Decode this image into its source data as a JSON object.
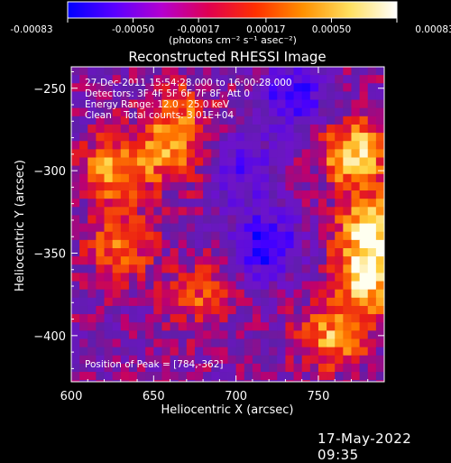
{
  "colorbar": {
    "ticks": [
      -0.00083,
      -0.0005,
      -0.00017,
      0.00017,
      0.0005,
      0.00083
    ],
    "tick_labels": [
      "-0.00083",
      "-0.00050",
      "-0.00017",
      "0.00017",
      "0.00050",
      "0.00083"
    ],
    "units_label": "(photons cm⁻² s⁻¹ asec⁻²)",
    "colors": [
      "#0000ff",
      "#5a00ff",
      "#b400d0",
      "#e00050",
      "#ff3000",
      "#ff9000",
      "#ffe060",
      "#ffffff"
    ]
  },
  "chart_data": {
    "type": "heatmap",
    "title": "Reconstructed RHESSI Image",
    "xlabel": "Heliocentric X (arcsec)",
    "ylabel": "Heliocentric Y (arcsec)",
    "xlim": [
      600,
      790
    ],
    "ylim": [
      -428,
      -237
    ],
    "x_ticks": [
      600,
      650,
      700,
      750
    ],
    "y_ticks": [
      -250,
      -300,
      -350,
      -400
    ],
    "x_tick_labels": [
      "600",
      "650",
      "700",
      "750"
    ],
    "y_tick_labels": [
      "−250",
      "−300",
      "−350",
      "−400"
    ],
    "color_range": [
      -0.00083,
      0.00083
    ],
    "annotations": [
      "27-Dec-2011 15:54:28.000 to 16:00:28.000",
      "Detectors: 3F 4F 5F 6F 7F 8F, Att 0",
      "Energy Range: 12.0 - 25.0 keV",
      "Clean    Total counts: 3.01E+04"
    ],
    "peak_label": "Position of Peak = [784,-362]",
    "peak": [
      784,
      -362
    ],
    "bright_regions": [
      {
        "x": 772,
        "y": -290,
        "value": 0.0008
      },
      {
        "x": 782,
        "y": -335,
        "value": 0.0008
      },
      {
        "x": 780,
        "y": -365,
        "value": 0.00083
      },
      {
        "x": 760,
        "y": -400,
        "value": 0.0006
      },
      {
        "x": 625,
        "y": -300,
        "value": 0.0006
      },
      {
        "x": 660,
        "y": -290,
        "value": 0.0005
      },
      {
        "x": 665,
        "y": -265,
        "value": 0.0004
      },
      {
        "x": 630,
        "y": -345,
        "value": 0.0005
      },
      {
        "x": 680,
        "y": -375,
        "value": 0.0004
      }
    ],
    "dim_regions": [
      {
        "x": 735,
        "y": -255,
        "value": -0.0006
      },
      {
        "x": 718,
        "y": -345,
        "value": -0.0007
      },
      {
        "x": 705,
        "y": -300,
        "value": -0.0004
      }
    ]
  },
  "footer": {
    "date": "17-May-2022 09:35"
  }
}
